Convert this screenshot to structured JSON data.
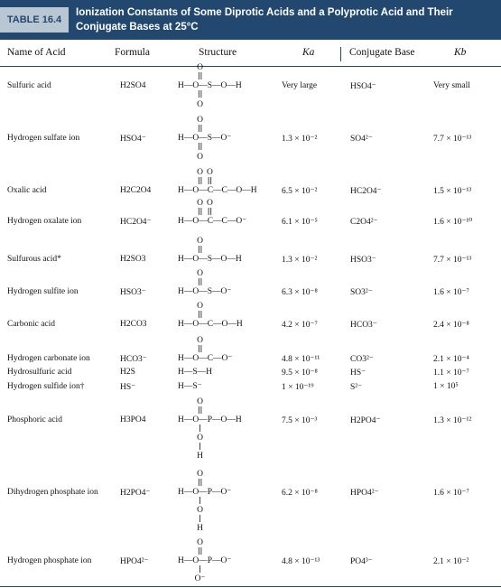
{
  "header": {
    "table_number": "TABLE 16.4",
    "title": "Ionization Constants of Some Diprotic Acids and a Polyprotic Acid and Their Conjugate Bases at 25°C"
  },
  "columns": {
    "name": "Name of Acid",
    "formula": "Formula",
    "structure": "Structure",
    "ka": "Ka",
    "conjugate": "Conjugate Base",
    "kb": "Kb"
  },
  "rows": [
    {
      "name": "Sulfuric acid",
      "formula": "H2SO4",
      "ka": "Very large",
      "conj": "HSO4⁻",
      "kb": "Very small"
    },
    {
      "name": "Hydrogen sulfate ion",
      "formula": "HSO4⁻",
      "ka": "1.3 × 10⁻²",
      "conj": "SO4²⁻",
      "kb": "7.7 × 10⁻¹³"
    },
    {
      "name": "Oxalic acid",
      "formula": "H2C2O4",
      "ka": "6.5 × 10⁻²",
      "conj": "HC2O4⁻",
      "kb": "1.5 × 10⁻¹³"
    },
    {
      "name": "Hydrogen oxalate ion",
      "formula": "HC2O4⁻",
      "ka": "6.1 × 10⁻⁵",
      "conj": "C2O4²⁻",
      "kb": "1.6 × 10⁻¹⁰"
    },
    {
      "name": "Sulfurous acid*",
      "formula": "H2SO3",
      "ka": "1.3 × 10⁻²",
      "conj": "HSO3⁻",
      "kb": "7.7 × 10⁻¹³"
    },
    {
      "name": "Hydrogen sulfite ion",
      "formula": "HSO3⁻",
      "ka": "6.3 × 10⁻⁸",
      "conj": "SO3²⁻",
      "kb": "1.6 × 10⁻⁷"
    },
    {
      "name": "Carbonic acid",
      "formula": "H2CO3",
      "ka": "4.2 × 10⁻⁷",
      "conj": "HCO3⁻",
      "kb": "2.4 × 10⁻⁸"
    },
    {
      "name": "Hydrogen carbonate ion",
      "formula": "HCO3⁻",
      "ka": "4.8 × 10⁻¹¹",
      "conj": "CO3²⁻",
      "kb": "2.1 × 10⁻⁴"
    },
    {
      "name": "Hydrosulfuric acid",
      "formula": "H2S",
      "ka": "9.5 × 10⁻⁸",
      "conj": "HS⁻",
      "kb": "1.1 × 10⁻⁷"
    },
    {
      "name": "Hydrogen sulfide ion†",
      "formula": "HS⁻",
      "ka": "1 × 10⁻¹⁹",
      "conj": "S²⁻",
      "kb": "1 × 10⁵"
    },
    {
      "name": "Phosphoric acid",
      "formula": "H3PO4",
      "ka": "7.5 × 10⁻³",
      "conj": "H2PO4⁻",
      "kb": "1.3 × 10⁻¹²"
    },
    {
      "name": "Dihydrogen phosphate ion",
      "formula": "H2PO4⁻",
      "ka": "6.2 × 10⁻⁸",
      "conj": "HPO4²⁻",
      "kb": "1.6 × 10⁻⁷"
    },
    {
      "name": "Hydrogen phosphate ion",
      "formula": "HPO4²⁻",
      "ka": "4.8 × 10⁻¹³",
      "conj": "PO4³⁻",
      "kb": "2.1 × 10⁻²"
    }
  ],
  "structures": [
    {
      "chain": "H—O—S—O—H",
      "top": "O",
      "bottom": "O"
    },
    {
      "chain": "H—O—S—O⁻",
      "top": "O",
      "bottom": "O"
    },
    {
      "chain": "H—O—C—C—O—H",
      "top": "O O"
    },
    {
      "chain": "H—O—C—C—O⁻",
      "top": "O O"
    },
    {
      "chain": "H—O—S—O—H",
      "top": "O"
    },
    {
      "chain": "H—O—S—O⁻",
      "top": "O"
    },
    {
      "chain": "H—O—C—O—H",
      "top": "O"
    },
    {
      "chain": "H—O—C—O⁻",
      "top": "O"
    },
    {
      "chain": "H—S—H"
    },
    {
      "chain": "H—S⁻"
    },
    {
      "chain": "H—O—P—O—H",
      "top": "O",
      "below": [
        "O",
        "H"
      ]
    },
    {
      "chain": "H—O—P—O⁻",
      "top": "O",
      "below": [
        "O",
        "H"
      ]
    },
    {
      "chain": "H—O—P—O⁻",
      "top": "O",
      "below": [
        "O⁻"
      ]
    }
  ]
}
